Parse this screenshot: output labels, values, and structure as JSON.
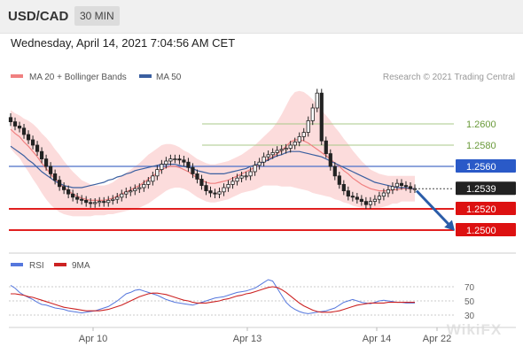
{
  "header": {
    "pair": "USD/CAD",
    "timeframe": "30 MIN"
  },
  "date": "Wednesday, April 14, 2021 7:04:56 AM CET",
  "legend": {
    "ma20": "MA 20 + Bollinger Bands",
    "ma50": "MA 50",
    "credit": "Research © 2021 Trading Central",
    "rsi": "RSI",
    "ma9": "9MA"
  },
  "colors": {
    "candle": "#222222",
    "ma20": "#f08080",
    "ma50": "#3a5fa0",
    "band": "#fbd0d0",
    "support": "#dd0000",
    "pivot": "#4a6fc8",
    "resistance": "#a8c888",
    "arrow": "#2a5ca8",
    "rsi": "#5577dd",
    "rsi_ma": "#cc2222"
  },
  "chart_data": [
    {
      "type": "line",
      "chart": "price",
      "ylim": [
        1.2485,
        1.2635
      ],
      "x_ticks": [
        "Apr 10",
        "Apr 13",
        "Apr 14",
        "Apr 22"
      ],
      "levels": [
        {
          "value": 1.26,
          "label": "1.2600",
          "role": "resistance"
        },
        {
          "value": 1.258,
          "label": "1.2580",
          "role": "resistance"
        },
        {
          "value": 1.256,
          "label": "1.2560",
          "role": "pivot"
        },
        {
          "value": 1.2539,
          "label": "1.2539",
          "role": "last"
        },
        {
          "value": 1.252,
          "label": "1.2520",
          "role": "support"
        },
        {
          "value": 1.25,
          "label": "1.2500",
          "role": "support"
        }
      ],
      "close": [
        1.2602,
        1.2598,
        1.2596,
        1.259,
        1.2585,
        1.258,
        1.2574,
        1.2567,
        1.256,
        1.2553,
        1.2547,
        1.2541,
        1.2538,
        1.2534,
        1.2531,
        1.2529,
        1.2528,
        1.2526,
        1.2525,
        1.2526,
        1.2527,
        1.2526,
        1.2528,
        1.2529,
        1.2531,
        1.2534,
        1.2536,
        1.2537,
        1.2539,
        1.254,
        1.2543,
        1.2546,
        1.2551,
        1.2557,
        1.2562,
        1.2565,
        1.2567,
        1.2567,
        1.2566,
        1.2564,
        1.2559,
        1.2553,
        1.2548,
        1.2542,
        1.2537,
        1.2535,
        1.2534,
        1.2536,
        1.254,
        1.2543,
        1.2546,
        1.2549,
        1.2551,
        1.2551,
        1.2555,
        1.2561,
        1.2564,
        1.2569,
        1.2571,
        1.2573,
        1.2575,
        1.2576,
        1.2577,
        1.258,
        1.2583,
        1.2588,
        1.2592,
        1.2603,
        1.2615,
        1.2629,
        1.2584,
        1.2572,
        1.256,
        1.2551,
        1.2543,
        1.2537,
        1.2532,
        1.2531,
        1.2529,
        1.2527,
        1.2524,
        1.2527,
        1.2529,
        1.2532,
        1.2535,
        1.2538,
        1.2541,
        1.2544,
        1.2542,
        1.2541,
        1.2539,
        1.2539
      ],
      "ma20": [
        1.2595,
        1.2591,
        1.2588,
        1.2583,
        1.2579,
        1.2574,
        1.2569,
        1.2563,
        1.2558,
        1.2553,
        1.2548,
        1.2544,
        1.254,
        1.2537,
        1.2534,
        1.2532,
        1.253,
        1.2529,
        1.2528,
        1.2528,
        1.2528,
        1.2528,
        1.2529,
        1.253,
        1.2532,
        1.2534,
        1.2536,
        1.2538,
        1.254,
        1.2542,
        1.2545,
        1.2548,
        1.2551,
        1.2554,
        1.2557,
        1.2559,
        1.256,
        1.256,
        1.2559,
        1.2557,
        1.2555,
        1.2552,
        1.2549,
        1.2547,
        1.2545,
        1.2544,
        1.2544,
        1.2545,
        1.2546,
        1.2547,
        1.2549,
        1.2551,
        1.2553,
        1.2555,
        1.2557,
        1.2559,
        1.2562,
        1.2565,
        1.2567,
        1.2569,
        1.2572,
        1.2575,
        1.2579,
        1.2583,
        1.2585,
        1.2585,
        1.2584,
        1.2582,
        1.2579,
        1.2576,
        1.2573,
        1.257,
        1.2567,
        1.2563,
        1.256,
        1.2556,
        1.2553,
        1.2549,
        1.2546,
        1.2543,
        1.2541,
        1.2539,
        1.2538,
        1.2537,
        1.2537,
        1.2537,
        1.2538,
        1.2538,
        1.2539,
        1.2539,
        1.2539,
        1.2539
      ],
      "ma50": [
        1.2579,
        1.2576,
        1.2573,
        1.257,
        1.2566,
        1.2563,
        1.2559,
        1.2555,
        1.2552,
        1.2549,
        1.2546,
        1.2544,
        1.2542,
        1.2541,
        1.254,
        1.254,
        1.254,
        1.2541,
        1.2542,
        1.2543,
        1.2544,
        1.2545,
        1.2547,
        1.2548,
        1.255,
        1.2551,
        1.2553,
        1.2554,
        1.2556,
        1.2557,
        1.2558,
        1.2559,
        1.256,
        1.2561,
        1.2562,
        1.2562,
        1.2562,
        1.2562,
        1.2561,
        1.256,
        1.2559,
        1.2558,
        1.2556,
        1.2555,
        1.2554,
        1.2553,
        1.2553,
        1.2553,
        1.2553,
        1.2554,
        1.2555,
        1.2556,
        1.2557,
        1.2558,
        1.256,
        1.2561,
        1.2563,
        1.2564,
        1.2566,
        1.2568,
        1.257,
        1.2571,
        1.2573,
        1.2574,
        1.2574,
        1.2574,
        1.2573,
        1.2572,
        1.2571,
        1.257,
        1.2569,
        1.2567,
        1.2565,
        1.2563,
        1.2561,
        1.2559,
        1.2557,
        1.2555,
        1.2553,
        1.2551,
        1.2549,
        1.2547,
        1.2545,
        1.2544,
        1.2543,
        1.2542,
        1.2541,
        1.254,
        1.254,
        1.254,
        1.2539,
        1.2539
      ],
      "band_width": [
        0.0018,
        0.0019,
        0.002,
        0.0022,
        0.0024,
        0.0026,
        0.0027,
        0.0028,
        0.0029,
        0.0029,
        0.0028,
        0.0027,
        0.0025,
        0.0023,
        0.0021,
        0.0019,
        0.0017,
        0.0016,
        0.0015,
        0.0014,
        0.0014,
        0.0014,
        0.0014,
        0.0015,
        0.0016,
        0.0017,
        0.0018,
        0.0019,
        0.002,
        0.0021,
        0.0022,
        0.0023,
        0.0023,
        0.0023,
        0.0023,
        0.0022,
        0.0021,
        0.002,
        0.0019,
        0.0018,
        0.0018,
        0.0018,
        0.0018,
        0.0018,
        0.0018,
        0.0018,
        0.0018,
        0.0018,
        0.0018,
        0.0018,
        0.0018,
        0.0018,
        0.0018,
        0.0019,
        0.002,
        0.0021,
        0.0022,
        0.0023,
        0.0025,
        0.0027,
        0.003,
        0.0034,
        0.0038,
        0.0042,
        0.0045,
        0.0046,
        0.0046,
        0.0045,
        0.0044,
        0.0042,
        0.004,
        0.0038,
        0.0036,
        0.0034,
        0.0032,
        0.003,
        0.0028,
        0.0026,
        0.0024,
        0.0022,
        0.002,
        0.0018,
        0.0017,
        0.0016,
        0.0015,
        0.0014,
        0.0013,
        0.0013,
        0.0012,
        0.0012,
        0.0012,
        0.0012
      ]
    },
    {
      "type": "line",
      "chart": "rsi",
      "ylim": [
        15,
        85
      ],
      "y_ticks": [
        "70",
        "50",
        "30"
      ],
      "rsi": [
        72,
        68,
        62,
        58,
        55,
        52,
        48,
        45,
        44,
        42,
        40,
        39,
        38,
        36,
        35,
        34,
        33,
        34,
        35,
        36,
        38,
        40,
        42,
        46,
        50,
        55,
        60,
        62,
        65,
        66,
        64,
        62,
        60,
        58,
        55,
        52,
        50,
        48,
        47,
        46,
        45,
        44,
        46,
        48,
        50,
        52,
        54,
        55,
        56,
        58,
        60,
        62,
        63,
        64,
        66,
        68,
        72,
        76,
        80,
        78,
        68,
        58,
        48,
        42,
        38,
        35,
        33,
        32,
        33,
        34,
        35,
        36,
        38,
        40,
        44,
        48,
        50,
        52,
        50,
        48,
        47,
        46,
        48,
        50,
        51,
        50,
        49,
        48,
        48,
        47,
        47,
        47
      ],
      "ma9": [
        60,
        60,
        59,
        58,
        56,
        55,
        53,
        51,
        49,
        47,
        45,
        43,
        41,
        40,
        39,
        38,
        37,
        36,
        36,
        36,
        36,
        37,
        38,
        40,
        42,
        44,
        47,
        50,
        53,
        56,
        58,
        60,
        61,
        61,
        60,
        59,
        57,
        55,
        53,
        51,
        50,
        48,
        47,
        47,
        47,
        48,
        49,
        50,
        52,
        53,
        55,
        57,
        58,
        60,
        61,
        63,
        65,
        67,
        69,
        70,
        69,
        66,
        62,
        57,
        52,
        47,
        43,
        40,
        37,
        35,
        34,
        34,
        34,
        35,
        36,
        38,
        40,
        42,
        44,
        45,
        46,
        47,
        47,
        47,
        47,
        48,
        48,
        48,
        48,
        48,
        48,
        48
      ]
    }
  ]
}
